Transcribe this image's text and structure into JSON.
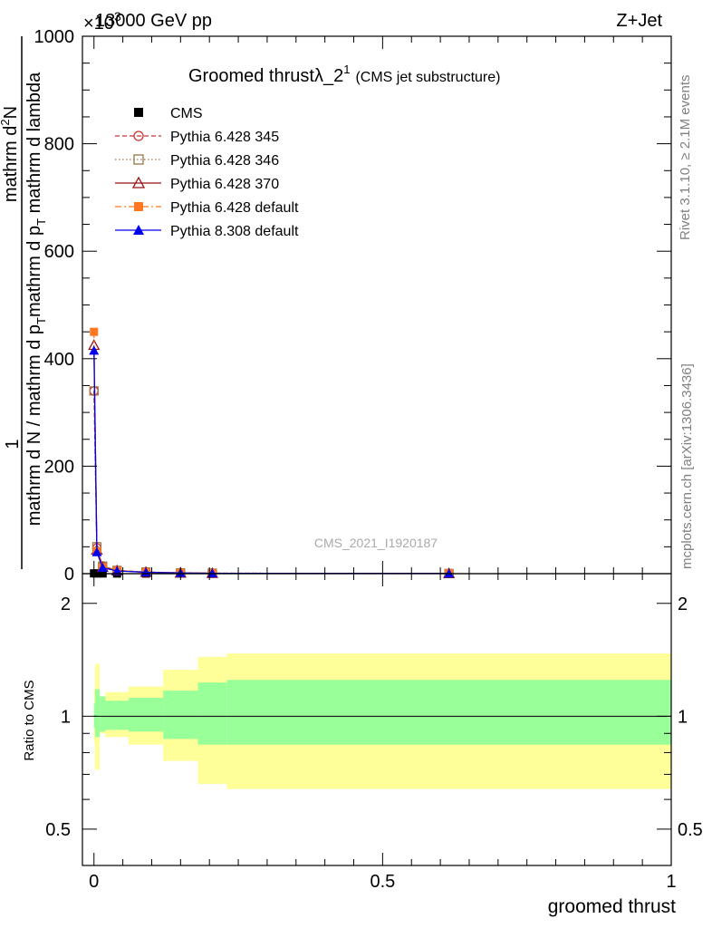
{
  "header": {
    "energy_label": "13000 GeV pp",
    "process_label": "Z+Jet",
    "exponent_label": "×10",
    "exponent_power": "3"
  },
  "side_labels": {
    "rivet": "Rivet 3.1.10, ≥ 2.1M events",
    "mcplots": "mcplots.cern.ch [arXiv:1306.3436]"
  },
  "chart_data": [
    {
      "type": "line",
      "title_main": "Groomed thrust",
      "title_lambda": "λ_2",
      "title_sup": "1",
      "title_note": "(CMS jet substructure)",
      "analysis_tag": "CMS_2021_I1920187",
      "ylabel": {
        "numerator_one": "1",
        "numerator": "mathrm d",
        "numerator_sup": "2",
        "numerator_tail": "N",
        "denominator": "mathrm d N / mathrm d p",
        "denominator_sub": "T",
        "denominator_tail": "mathrm d p",
        "denominator_sub2": "T",
        "denominator_tail2": " mathrm d lambda"
      },
      "y_scale_exponent": 3,
      "ylim": [
        0,
        1000
      ],
      "xlim": [
        -0.02,
        1.0
      ],
      "yticks": [
        0,
        200,
        400,
        600,
        800,
        1000
      ],
      "ytick_labels": [
        "0",
        "200",
        "400",
        "600",
        "800",
        "1000"
      ],
      "series": [
        {
          "name": "CMS",
          "color": "#000000",
          "marker": "square-filled",
          "line": "none",
          "x": [
            0.0,
            0.005,
            0.015,
            0.04,
            0.09,
            0.15,
            0.205,
            0.615
          ],
          "y": [
            0.5,
            0.4,
            0.3,
            0.2,
            0.15,
            0.1,
            0.05,
            0.02
          ]
        },
        {
          "name": "Pythia 6.428 345",
          "color": "#cc3333",
          "marker": "circle-open",
          "line": "dashed",
          "x": [
            0.0,
            0.005,
            0.015,
            0.04,
            0.09,
            0.15,
            0.205,
            0.615
          ],
          "y": [
            340,
            48,
            14,
            6,
            3,
            1.5,
            0.8,
            0.3
          ]
        },
        {
          "name": "Pythia 6.428 346",
          "color": "#997744",
          "marker": "square-open",
          "line": "dotted",
          "x": [
            0.0,
            0.005,
            0.015,
            0.04,
            0.09,
            0.15,
            0.205,
            0.615
          ],
          "y": [
            340,
            50,
            14,
            6,
            3,
            1.5,
            0.8,
            0.3
          ]
        },
        {
          "name": "Pythia 6.428 370",
          "color": "#991111",
          "marker": "triangle-open",
          "line": "solid",
          "x": [
            0.0,
            0.005,
            0.015,
            0.04,
            0.09,
            0.15,
            0.205,
            0.615
          ],
          "y": [
            425,
            44,
            12,
            5.5,
            2.8,
            1.4,
            0.7,
            0.3
          ]
        },
        {
          "name": "Pythia 6.428 default",
          "color": "#ff7722",
          "marker": "square-filled",
          "line": "dashdot",
          "x": [
            0.0,
            0.005,
            0.015,
            0.04,
            0.09,
            0.15,
            0.205,
            0.615
          ],
          "y": [
            450,
            42,
            12,
            5.5,
            2.8,
            1.4,
            0.7,
            0.3
          ]
        },
        {
          "name": "Pythia 8.308 default",
          "color": "#0000ee",
          "marker": "triangle-filled",
          "line": "solid",
          "x": [
            0.0,
            0.005,
            0.015,
            0.04,
            0.09,
            0.15,
            0.205,
            0.615
          ],
          "y": [
            415,
            40,
            11,
            5,
            2.5,
            1.3,
            0.6,
            0.3
          ]
        }
      ]
    },
    {
      "type": "area",
      "ylabel": "Ratio to CMS",
      "xlabel": "groomed thrust",
      "ylim": [
        0.4,
        2.4
      ],
      "y_scale": "log",
      "xlim": [
        -0.02,
        1.0
      ],
      "yticks": [
        0.5,
        1,
        2
      ],
      "ytick_labels": [
        "0.5",
        "1",
        "2"
      ],
      "xticks": [
        0,
        0.5,
        1
      ],
      "xtick_labels": [
        "0",
        "0.5",
        "1"
      ],
      "reference_line": 1,
      "bands": {
        "edges": [
          0.0,
          0.002,
          0.01,
          0.02,
          0.06,
          0.12,
          0.18,
          0.23,
          1.0
        ],
        "inner_color": "#99ff99",
        "outer_color": "#ffff99",
        "inner_up": [
          1.08,
          1.18,
          1.13,
          1.1,
          1.12,
          1.17,
          1.23,
          1.25,
          1.25
        ],
        "inner_down": [
          0.93,
          0.88,
          0.91,
          0.92,
          0.91,
          0.87,
          0.84,
          0.84,
          0.84
        ],
        "outer_up": [
          1.18,
          1.38,
          1.12,
          1.16,
          1.2,
          1.33,
          1.44,
          1.47,
          1.47
        ],
        "outer_down": [
          0.85,
          0.72,
          0.9,
          0.88,
          0.84,
          0.76,
          0.66,
          0.64,
          0.64
        ]
      }
    }
  ]
}
